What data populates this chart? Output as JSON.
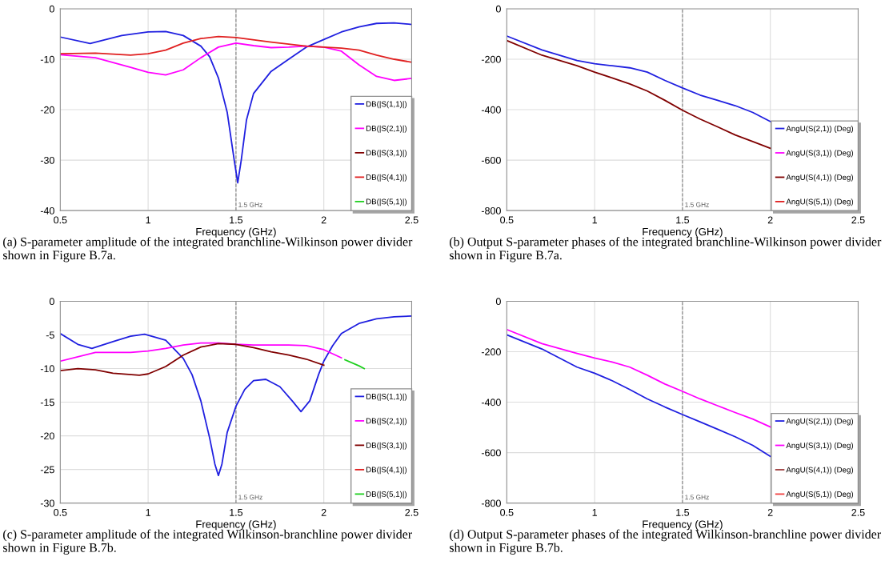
{
  "chart_data": [
    {
      "type": "line",
      "xlabel": "Frequency (GHz)",
      "xlim": [
        0.5,
        2.5
      ],
      "xticks": [
        0.5,
        1,
        1.5,
        2,
        2.5
      ],
      "ylim": [
        -40,
        0
      ],
      "yticks": [
        -40,
        -30,
        -20,
        -10,
        0
      ],
      "grid": true,
      "legend": "bottom right",
      "ref_lines": [
        {
          "axis": "x",
          "value": 1.5,
          "label": "1.5 GHz",
          "color": "#808080",
          "line_style": "dashed"
        }
      ],
      "annotations": [
        "(a) S-parameter amplitude of the integrated branchline-Wilkinson power divider shown in Figure B.7a."
      ],
      "series": [
        {
          "name": "DB(|S(1,1)|)",
          "color": "#2020e0",
          "x": [
            0.5,
            0.67,
            0.85,
            1.0,
            1.1,
            1.2,
            1.3,
            1.35,
            1.4,
            1.45,
            1.49,
            1.51,
            1.53,
            1.56,
            1.6,
            1.7,
            1.8,
            1.9,
            2.0,
            2.1,
            2.2,
            2.3,
            2.4,
            2.5
          ],
          "values": [
            -5.6,
            -6.9,
            -5.3,
            -4.6,
            -4.5,
            -5.3,
            -7.4,
            -9.5,
            -13.7,
            -20.5,
            -30,
            -34.5,
            -30,
            -22,
            -16.8,
            -12.4,
            -10,
            -7.6,
            -6.1,
            -4.6,
            -3.6,
            -2.9,
            -2.8,
            -3.1
          ]
        },
        {
          "name": "DB(|S(2,1)|)",
          "color": "#ff00ff",
          "x": [
            0.5,
            0.7,
            0.9,
            1.0,
            1.1,
            1.2,
            1.3,
            1.4,
            1.5,
            1.6,
            1.7,
            1.8,
            1.9,
            2.0,
            2.1,
            2.2,
            2.3,
            2.4,
            2.5
          ],
          "values": [
            -9.1,
            -9.7,
            -11.6,
            -12.6,
            -13.1,
            -12.1,
            -9.7,
            -7.6,
            -6.8,
            -7.3,
            -7.7,
            -7.6,
            -7.4,
            -7.6,
            -8.4,
            -11.1,
            -13.4,
            -14.2,
            -13.8
          ]
        },
        {
          "name": "DB(|S(3,1)|)",
          "color": "#800000"
        },
        {
          "name": "DB(|S(4,1)|)",
          "color": "#e02020",
          "x": [
            0.5,
            0.7,
            0.9,
            1.0,
            1.1,
            1.2,
            1.3,
            1.4,
            1.5,
            1.7,
            1.9,
            2.0,
            2.1,
            2.2,
            2.3,
            2.4,
            2.5
          ],
          "values": [
            -8.9,
            -8.8,
            -9.2,
            -8.9,
            -8.2,
            -6.8,
            -5.9,
            -5.5,
            -5.7,
            -6.6,
            -7.4,
            -7.6,
            -7.8,
            -8.2,
            -9.2,
            -10,
            -10.6
          ]
        },
        {
          "name": "DB(|S(5,1)|)",
          "color": "#20d020"
        }
      ]
    },
    {
      "type": "line",
      "xlabel": "Frequency (GHz)",
      "xlim": [
        0.5,
        2.5
      ],
      "xticks": [
        0.5,
        1,
        1.5,
        2,
        2.5
      ],
      "ylim": [
        -800,
        0
      ],
      "yticks": [
        -800,
        -600,
        -400,
        -200,
        0
      ],
      "grid": true,
      "legend": "bottom right",
      "ref_lines": [
        {
          "axis": "x",
          "value": 1.5,
          "label": "1.5 GHz",
          "color": "#808080",
          "line_style": "dashed"
        }
      ],
      "annotations": [
        "(b) Output S-parameter phases of the integrated branchline-Wilkinson power divider shown in Figure B.7a."
      ],
      "series": [
        {
          "name": "AngU(S(2,1)) (Deg)",
          "color": "#2020e0",
          "x": [
            0.5,
            0.7,
            0.9,
            1.0,
            1.1,
            1.2,
            1.3,
            1.4,
            1.5,
            1.6,
            1.7,
            1.8,
            1.9,
            2.0
          ],
          "values": [
            -108,
            -163,
            -205,
            -218,
            -226,
            -234,
            -251,
            -284,
            -314,
            -342,
            -363,
            -384,
            -411,
            -447
          ]
        },
        {
          "name": "AngU(S(3,1)) (Deg)",
          "color": "#ff00ff"
        },
        {
          "name": "AngU(S(4,1)) (Deg)",
          "color": "#800000",
          "x": [
            0.5,
            0.7,
            0.9,
            1.0,
            1.1,
            1.2,
            1.3,
            1.4,
            1.5,
            1.6,
            1.7,
            1.8,
            1.9,
            2.0
          ],
          "values": [
            -126,
            -184,
            -226,
            -251,
            -274,
            -298,
            -326,
            -363,
            -402,
            -437,
            -468,
            -500,
            -526,
            -553
          ]
        },
        {
          "name": "AngU(S(5,1)) (Deg)",
          "color": "#e02020"
        }
      ]
    },
    {
      "type": "line",
      "xlabel": "Frequency (GHz)",
      "xlim": [
        0.5,
        2.5
      ],
      "xticks": [
        0.5,
        1,
        1.5,
        2,
        2.5
      ],
      "ylim": [
        -30,
        0
      ],
      "yticks": [
        -30,
        -25,
        -20,
        -15,
        -10,
        -5,
        0
      ],
      "grid": true,
      "legend": "bottom right",
      "ref_lines": [
        {
          "axis": "x",
          "value": 1.5,
          "label": "1.5 GHz",
          "color": "#808080",
          "line_style": "dashed"
        }
      ],
      "annotations": [
        "(c) S-parameter amplitude of the integrated Wilkinson-branchline power divider shown in Figure B.7b."
      ],
      "series": [
        {
          "name": "DB(|S(1,1)|)",
          "color": "#2020e0",
          "x": [
            0.5,
            0.6,
            0.68,
            0.8,
            0.9,
            0.98,
            1.1,
            1.2,
            1.25,
            1.3,
            1.35,
            1.38,
            1.4,
            1.42,
            1.45,
            1.5,
            1.55,
            1.6,
            1.67,
            1.75,
            1.82,
            1.87,
            1.92,
            1.97,
            2.0,
            2.05,
            2.1,
            2.2,
            2.3,
            2.4,
            2.5
          ],
          "values": [
            -4.8,
            -6.4,
            -7.0,
            -6.0,
            -5.2,
            -4.9,
            -5.8,
            -8.5,
            -10.9,
            -14.8,
            -20.3,
            -24.2,
            -25.9,
            -24.2,
            -19.5,
            -15.6,
            -13.1,
            -11.8,
            -11.6,
            -12.7,
            -14.8,
            -16.4,
            -14.8,
            -10.9,
            -8.9,
            -6.6,
            -4.8,
            -3.3,
            -2.6,
            -2.3,
            -2.2
          ]
        },
        {
          "name": "DB(|S(2,1)|)",
          "color": "#ff00ff",
          "x": [
            0.5,
            0.7,
            0.9,
            1.0,
            1.1,
            1.2,
            1.3,
            1.4,
            1.5,
            1.6,
            1.7,
            1.8,
            1.9,
            2.0,
            2.1
          ],
          "values": [
            -8.9,
            -7.6,
            -7.6,
            -7.4,
            -7.0,
            -6.5,
            -6.2,
            -6.2,
            -6.4,
            -6.5,
            -6.5,
            -6.5,
            -6.6,
            -7.2,
            -8.4
          ]
        },
        {
          "name": "DB(|S(3,1)|)",
          "color": "#800000",
          "x": [
            0.5,
            0.6,
            0.7,
            0.8,
            0.95,
            1.0,
            1.1,
            1.2,
            1.3,
            1.4,
            1.5,
            1.6,
            1.7,
            1.8,
            1.9,
            2.0
          ],
          "values": [
            -10.3,
            -10.0,
            -10.2,
            -10.7,
            -11.0,
            -10.8,
            -9.7,
            -8.0,
            -6.8,
            -6.3,
            -6.4,
            -6.9,
            -7.5,
            -8.0,
            -8.6,
            -9.5
          ]
        },
        {
          "name": "DB(|S(4,1)|)",
          "color": "#e02020"
        },
        {
          "name": "DB(|S(5,1)|)",
          "color": "#20d020",
          "x": [
            2.12,
            2.2,
            2.23
          ],
          "values": [
            -8.7,
            -9.6,
            -10
          ]
        }
      ]
    },
    {
      "type": "line",
      "xlabel": "Frequency (GHz)",
      "xlim": [
        0.5,
        2.5
      ],
      "xticks": [
        0.5,
        1,
        1.5,
        2,
        2.5
      ],
      "ylim": [
        -800,
        0
      ],
      "yticks": [
        -800,
        -600,
        -400,
        -200,
        0
      ],
      "grid": true,
      "legend": "bottom right",
      "ref_lines": [
        {
          "axis": "x",
          "value": 1.5,
          "label": "1.5 GHz",
          "color": "#808080",
          "line_style": "dashed"
        }
      ],
      "annotations": [
        "(d) Output S-parameter phases of the integrated Wilkinson-branchline power divider shown in Figure B.7b."
      ],
      "series": [
        {
          "name": "AngU(S(2,1)) (Deg)",
          "color": "#2020e0",
          "x": [
            0.5,
            0.7,
            0.9,
            1.0,
            1.1,
            1.2,
            1.3,
            1.4,
            1.5,
            1.6,
            1.7,
            1.8,
            1.9,
            2.0
          ],
          "values": [
            -133,
            -189,
            -261,
            -285,
            -315,
            -350,
            -387,
            -419,
            -449,
            -478,
            -507,
            -537,
            -571,
            -615
          ]
        },
        {
          "name": "AngU(S(3,1)) (Deg)",
          "color": "#ff00ff",
          "x": [
            0.5,
            0.7,
            0.9,
            1.0,
            1.1,
            1.2,
            1.3,
            1.4,
            1.5,
            1.6,
            1.7,
            1.8,
            1.9,
            2.0
          ],
          "values": [
            -112,
            -168,
            -207,
            -225,
            -241,
            -261,
            -293,
            -328,
            -357,
            -387,
            -414,
            -441,
            -467,
            -498
          ]
        },
        {
          "name": "AngU(S(4,1)) (Deg)",
          "color": "#a04040"
        },
        {
          "name": "AngU(S(5,1)) (Deg)",
          "color": "#f04040"
        }
      ]
    }
  ]
}
